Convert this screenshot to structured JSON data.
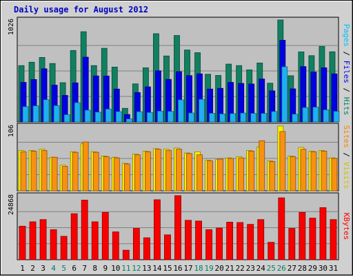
{
  "chart_data": [
    {
      "type": "bar",
      "title": "Daily usage for August 2012",
      "panel": "pages-files-hits",
      "categories": [
        "1",
        "2",
        "3",
        "4",
        "5",
        "6",
        "7",
        "8",
        "9",
        "10",
        "11",
        "12",
        "13",
        "14",
        "15",
        "16",
        "17",
        "18",
        "19",
        "20",
        "21",
        "22",
        "23",
        "24",
        "25",
        "26",
        "27",
        "28",
        "29",
        "30",
        "31"
      ],
      "y_max_label": "1026",
      "ylim": [
        0,
        1026
      ],
      "ylabel_parts": [
        {
          "text": "Pages",
          "color": "#00c0ff"
        },
        {
          "text": " / ",
          "color": "#000000"
        },
        {
          "text": "Files",
          "color": "#0000e0"
        },
        {
          "text": " / ",
          "color": "#000000"
        },
        {
          "text": "Hits",
          "color": "#008060"
        }
      ],
      "series": [
        {
          "name": "Hits",
          "color": "#118060",
          "values": [
            567,
            601,
            649,
            588,
            395,
            719,
            908,
            567,
            741,
            552,
            137,
            383,
            545,
            888,
            664,
            870,
            724,
            697,
            480,
            468,
            582,
            567,
            524,
            593,
            390,
            1026,
            465,
            705,
            667,
            760,
            706
          ]
        },
        {
          "name": "Files",
          "color": "#0000e0",
          "values": [
            398,
            427,
            535,
            370,
            267,
            393,
            652,
            463,
            462,
            331,
            75,
            296,
            353,
            515,
            428,
            506,
            466,
            484,
            331,
            338,
            398,
            388,
            382,
            432,
            313,
            822,
            333,
            557,
            503,
            545,
            484
          ]
        },
        {
          "name": "Pages",
          "color": "#20b0f0",
          "values": [
            154,
            162,
            224,
            164,
            73,
            194,
            118,
            99,
            129,
            104,
            30,
            103,
            95,
            109,
            106,
            222,
            90,
            228,
            87,
            81,
            84,
            89,
            86,
            86,
            105,
            555,
            78,
            144,
            149,
            122,
            107
          ]
        }
      ],
      "grid": true,
      "grid_lines": 3
    },
    {
      "type": "bar",
      "panel": "visits-sites",
      "categories": [
        "1",
        "2",
        "3",
        "4",
        "5",
        "6",
        "7",
        "8",
        "9",
        "10",
        "11",
        "12",
        "13",
        "14",
        "15",
        "16",
        "17",
        "18",
        "19",
        "20",
        "21",
        "22",
        "23",
        "24",
        "25",
        "26",
        "27",
        "28",
        "29",
        "30",
        "31"
      ],
      "y_max_label": "106",
      "ylim": [
        0,
        106
      ],
      "ylabel_parts": [
        {
          "text": "Sites",
          "color": "#ff8000"
        },
        {
          "text": " / ",
          "color": "#000000"
        },
        {
          "text": "Visits",
          "color": "#d0c000"
        }
      ],
      "series": [
        {
          "name": "Visits",
          "color": "#f8f000",
          "values": [
            66,
            66,
            68,
            55,
            42,
            64,
            77,
            64,
            57,
            55,
            45,
            60,
            65,
            69,
            68,
            70,
            62,
            64,
            50,
            51,
            54,
            56,
            66,
            72,
            49,
            106,
            57,
            71,
            65,
            66,
            54
          ]
        },
        {
          "name": "Sites",
          "color": "#f89010",
          "values": [
            64,
            65,
            66,
            55,
            40,
            63,
            80,
            63,
            56,
            54,
            44,
            59,
            64,
            68,
            66,
            68,
            61,
            59,
            49,
            52,
            53,
            54,
            65,
            82,
            48,
            97,
            56,
            68,
            64,
            65,
            53
          ]
        }
      ],
      "grid": true,
      "grid_lines": 3
    },
    {
      "type": "bar",
      "panel": "kbytes",
      "categories": [
        "1",
        "2",
        "3",
        "4",
        "5",
        "6",
        "7",
        "8",
        "9",
        "10",
        "11",
        "12",
        "13",
        "14",
        "15",
        "16",
        "17",
        "18",
        "19",
        "20",
        "21",
        "22",
        "23",
        "24",
        "25",
        "26",
        "27",
        "28",
        "29",
        "30",
        "31"
      ],
      "y_max_label": "24868",
      "ylim": [
        0,
        24868
      ],
      "ylabel_parts": [
        {
          "text": "KBytes",
          "color": "#ff0000"
        }
      ],
      "series": [
        {
          "name": "KBytes",
          "color": "#f80000",
          "values": [
            13012,
            14720,
            15579,
            11658,
            9087,
            17857,
            23133,
            14720,
            18354,
            10805,
            3692,
            12155,
            8519,
            23274,
            9656,
            24868,
            15295,
            15011,
            11657,
            12297,
            14578,
            14439,
            13722,
            15579,
            6760,
            24016,
            12155,
            18354,
            16147,
            20223,
            15579
          ]
        }
      ],
      "grid": true,
      "grid_lines": 3
    }
  ],
  "x_labels": [
    {
      "text": "1",
      "color": "#000000"
    },
    {
      "text": "2",
      "color": "#000000"
    },
    {
      "text": "3",
      "color": "#000000"
    },
    {
      "text": "4",
      "color": "#008060"
    },
    {
      "text": "5",
      "color": "#008060"
    },
    {
      "text": "6",
      "color": "#000000"
    },
    {
      "text": "7",
      "color": "#000000"
    },
    {
      "text": "8",
      "color": "#000000"
    },
    {
      "text": "9",
      "color": "#000000"
    },
    {
      "text": "10",
      "color": "#000000"
    },
    {
      "text": "11",
      "color": "#008060"
    },
    {
      "text": "12",
      "color": "#008060"
    },
    {
      "text": "13",
      "color": "#000000"
    },
    {
      "text": "14",
      "color": "#000000"
    },
    {
      "text": "15",
      "color": "#000000"
    },
    {
      "text": "16",
      "color": "#000000"
    },
    {
      "text": "17",
      "color": "#000000"
    },
    {
      "text": "18",
      "color": "#008060"
    },
    {
      "text": "19",
      "color": "#008060"
    },
    {
      "text": "20",
      "color": "#000000"
    },
    {
      "text": "21",
      "color": "#000000"
    },
    {
      "text": "22",
      "color": "#000000"
    },
    {
      "text": "23",
      "color": "#000000"
    },
    {
      "text": "24",
      "color": "#000000"
    },
    {
      "text": "25",
      "color": "#008060"
    },
    {
      "text": "26",
      "color": "#008060"
    },
    {
      "text": "27",
      "color": "#000000"
    },
    {
      "text": "28",
      "color": "#000000"
    },
    {
      "text": "29",
      "color": "#000000"
    },
    {
      "text": "30",
      "color": "#000000"
    },
    {
      "text": "31",
      "color": "#000000"
    }
  ],
  "colors": {
    "title": "#0000c0",
    "plot_bg": "#c0c0c0",
    "frame_bg": "#d0d0d0"
  }
}
